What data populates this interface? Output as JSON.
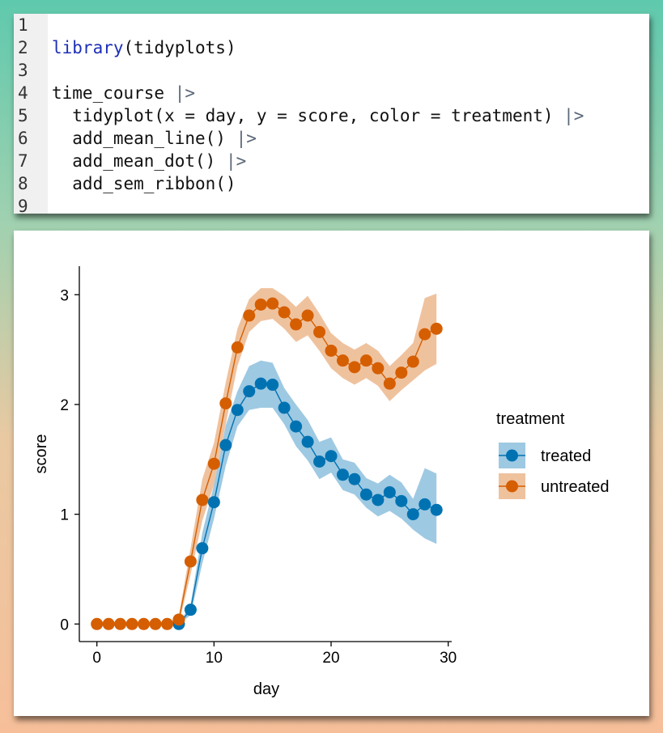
{
  "code": {
    "line_numbers": [
      "1",
      "2",
      "3",
      "4",
      "5",
      "6",
      "7",
      "8",
      "9"
    ],
    "lines": [
      {
        "parts": []
      },
      {
        "parts": [
          {
            "t": "library",
            "c": "kw"
          },
          {
            "t": "(tidyplots)",
            "c": ""
          }
        ]
      },
      {
        "parts": []
      },
      {
        "parts": [
          {
            "t": "time_course ",
            "c": ""
          },
          {
            "t": "|>",
            "c": "op"
          }
        ]
      },
      {
        "parts": [
          {
            "t": "  tidyplot(x = day, y = score, color = treatment) ",
            "c": ""
          },
          {
            "t": "|>",
            "c": "op"
          }
        ]
      },
      {
        "parts": [
          {
            "t": "  add_mean_line() ",
            "c": ""
          },
          {
            "t": "|>",
            "c": "op"
          }
        ]
      },
      {
        "parts": [
          {
            "t": "  add_mean_dot() ",
            "c": ""
          },
          {
            "t": "|>",
            "c": "op"
          }
        ]
      },
      {
        "parts": [
          {
            "t": "  add_sem_ribbon()",
            "c": ""
          }
        ]
      },
      {
        "parts": []
      }
    ]
  },
  "chart_data": {
    "type": "line",
    "title": "",
    "xlabel": "day",
    "ylabel": "score",
    "xlim": [
      -1.5,
      30.3
    ],
    "ylim": [
      -0.16,
      3.26
    ],
    "x_ticks": [
      0,
      10,
      20,
      30
    ],
    "y_ticks": [
      0,
      1,
      2,
      3
    ],
    "grid": false,
    "legend": {
      "title": "treatment",
      "position": "right"
    },
    "series": [
      {
        "name": "treated",
        "color": "#0072b2",
        "x": [
          7,
          8,
          9,
          10,
          11,
          12,
          13,
          14,
          15,
          16,
          17,
          18,
          19,
          20,
          21,
          22,
          23,
          24,
          25,
          26,
          27,
          28,
          29
        ],
        "y": [
          0.0,
          0.13,
          0.69,
          1.11,
          1.63,
          1.95,
          2.12,
          2.19,
          2.18,
          1.97,
          1.8,
          1.66,
          1.48,
          1.53,
          1.36,
          1.32,
          1.18,
          1.13,
          1.2,
          1.12,
          1.0,
          1.09,
          1.04
        ],
        "sem_low": [
          0.0,
          0.08,
          0.55,
          0.96,
          1.44,
          1.8,
          1.95,
          1.97,
          1.97,
          1.82,
          1.62,
          1.49,
          1.32,
          1.38,
          1.22,
          1.18,
          1.06,
          0.98,
          1.03,
          0.96,
          0.86,
          0.78,
          0.73
        ],
        "sem_high": [
          0.0,
          0.18,
          0.83,
          1.27,
          1.81,
          2.12,
          2.35,
          2.4,
          2.38,
          2.15,
          2.0,
          1.86,
          1.66,
          1.7,
          1.5,
          1.47,
          1.33,
          1.28,
          1.36,
          1.29,
          1.14,
          1.42,
          1.37
        ]
      },
      {
        "name": "untreated",
        "color": "#d55e00",
        "x": [
          0,
          1,
          2,
          3,
          4,
          5,
          6,
          7,
          8,
          9,
          10,
          11,
          12,
          13,
          14,
          15,
          16,
          17,
          18,
          19,
          20,
          21,
          22,
          23,
          24,
          25,
          26,
          27,
          28,
          29
        ],
        "y": [
          0,
          0,
          0,
          0,
          0,
          0,
          0,
          0.04,
          0.57,
          1.13,
          1.46,
          2.01,
          2.52,
          2.81,
          2.91,
          2.92,
          2.84,
          2.73,
          2.81,
          2.66,
          2.49,
          2.4,
          2.34,
          2.4,
          2.33,
          2.19,
          2.29,
          2.39,
          2.64,
          2.69
        ],
        "sem_low": [
          0,
          0,
          0,
          0,
          0,
          0,
          0,
          0.0,
          0.45,
          0.94,
          1.27,
          1.82,
          2.35,
          2.66,
          2.76,
          2.78,
          2.69,
          2.57,
          2.63,
          2.49,
          2.33,
          2.24,
          2.18,
          2.24,
          2.17,
          2.03,
          2.13,
          2.22,
          2.31,
          2.37
        ],
        "sem_high": [
          0,
          0,
          0,
          0,
          0,
          0,
          0,
          0.08,
          0.69,
          1.32,
          1.65,
          2.2,
          2.69,
          2.96,
          3.06,
          3.06,
          2.99,
          2.89,
          2.99,
          2.83,
          2.65,
          2.56,
          2.5,
          2.56,
          2.49,
          2.35,
          2.45,
          2.56,
          2.97,
          3.01
        ]
      }
    ]
  }
}
